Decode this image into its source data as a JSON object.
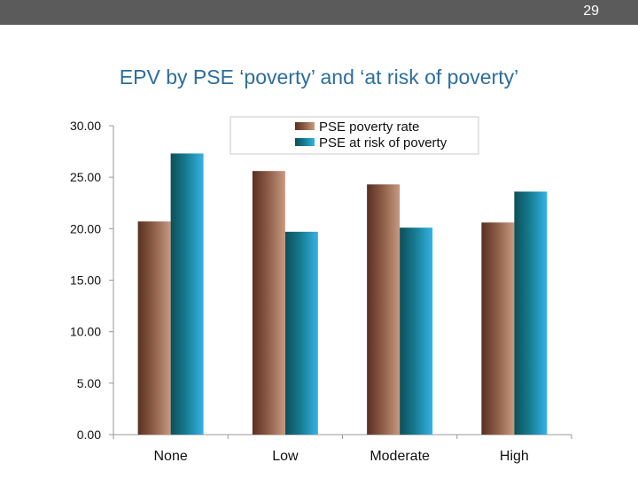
{
  "slide": {
    "page_number": "29",
    "title": "EPV by PSE ‘poverty’ and ‘at risk of poverty’"
  },
  "colors": {
    "topbar": "#5b5b5b",
    "title": "#2d6e9c",
    "series_1": "#7a4a36",
    "series_2": "#1a8fbf"
  },
  "chart_data": {
    "type": "bar",
    "title": "EPV by PSE ‘poverty’ and ‘at risk of poverty’",
    "categories": [
      "None",
      "Low",
      "Moderate",
      "High"
    ],
    "series": [
      {
        "name": "PSE poverty rate",
        "values": [
          20.7,
          25.6,
          24.3,
          20.6
        ],
        "color": "#7a4a36"
      },
      {
        "name": "PSE at risk of poverty",
        "values": [
          27.3,
          19.7,
          20.1,
          23.6
        ],
        "color": "#1a8fbf"
      }
    ],
    "xlabel": "",
    "ylabel": "",
    "ylim": [
      0,
      30
    ],
    "yticks": [
      "0.00",
      "5.00",
      "10.00",
      "15.00",
      "20.00",
      "25.00",
      "30.00"
    ],
    "grid": false,
    "legend": "top-right"
  }
}
